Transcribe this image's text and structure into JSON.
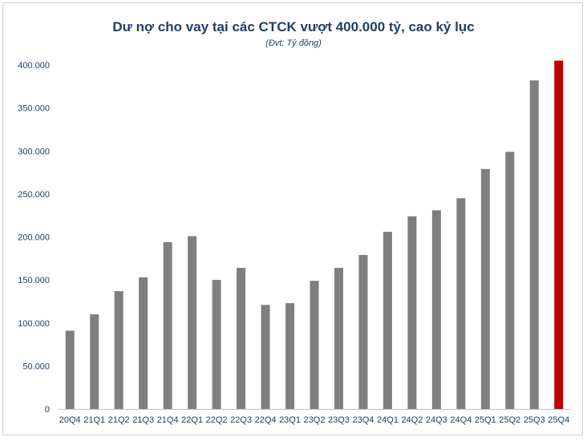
{
  "chart_data": {
    "type": "bar",
    "title": "Dư nợ cho vay tại các CTCK vượt 400.000 tỷ, cao kỷ lục",
    "subtitle": "(Đvt: Tỷ đồng)",
    "xlabel": "",
    "ylabel": "",
    "ylim": [
      0,
      400000
    ],
    "yticks": [
      0,
      50000,
      100000,
      150000,
      200000,
      250000,
      300000,
      350000,
      400000
    ],
    "ytick_labels": [
      "0",
      "50.000",
      "100.000",
      "150.000",
      "200.000",
      "250.000",
      "300.000",
      "350.000",
      "400.000"
    ],
    "grid": false,
    "legend": "none",
    "categories": [
      "20Q4",
      "21Q1",
      "21Q2",
      "21Q3",
      "21Q4",
      "22Q1",
      "22Q2",
      "22Q3",
      "22Q4",
      "23Q1",
      "23Q2",
      "23Q3",
      "23Q4",
      "24Q1",
      "24Q2",
      "24Q3",
      "24Q4",
      "25Q1",
      "25Q2",
      "25Q3",
      "25Q4"
    ],
    "values": [
      91000,
      110000,
      137000,
      153000,
      194000,
      201000,
      150000,
      164000,
      121000,
      123000,
      149000,
      164000,
      179000,
      206000,
      224000,
      231000,
      245000,
      279000,
      299000,
      382000,
      405000
    ],
    "colors": {
      "default": "#7f7f7f",
      "highlight": "#c00000",
      "text": "#1f3f66",
      "axis": "#bfbfbf"
    },
    "highlight_index": 20
  }
}
